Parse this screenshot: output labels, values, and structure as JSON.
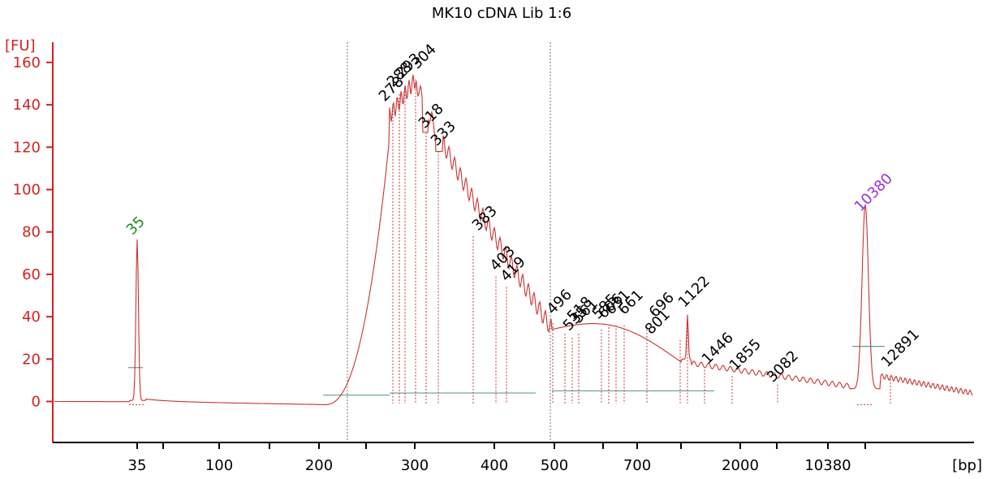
{
  "chart_data": {
    "type": "line",
    "title": "MK10 cDNA Lib 1:6",
    "ylabel": "[FU]",
    "xlabel": "[bp]",
    "ylim": [
      -18,
      170
    ],
    "yticks": [
      0,
      20,
      40,
      60,
      80,
      100,
      120,
      140,
      160
    ],
    "xtick_labels": [
      "35",
      "",
      "100",
      "",
      "200",
      "",
      "300",
      "400",
      "500",
      "",
      "700",
      "",
      "2000",
      "",
      "10380",
      ""
    ],
    "colors": {
      "axis_y": "#d42020",
      "trace": "#c83232",
      "marker_label": "#1a8a1a",
      "upper_marker_label": "#9b30d9",
      "peak_label": "#000000",
      "baseline": "#5f9ea0"
    },
    "marker_peaks": [
      {
        "label": "35",
        "height": 76,
        "role": "lower_marker"
      },
      {
        "label": "10380",
        "height": 87,
        "role": "upper_marker"
      }
    ],
    "sample_peaks": [
      {
        "label": "278",
        "height": 139
      },
      {
        "label": "288",
        "height": 145
      },
      {
        "label": "293",
        "height": 148
      },
      {
        "label": "304",
        "height": 152
      },
      {
        "label": "318",
        "height": 127
      },
      {
        "label": "333",
        "height": 118
      },
      {
        "label": "383",
        "height": 78
      },
      {
        "label": "403",
        "height": 59
      },
      {
        "label": "419",
        "height": 54
      },
      {
        "label": "496",
        "height": 37
      },
      {
        "label": "518",
        "height": 32
      },
      {
        "label": "535",
        "height": 30
      },
      {
        "label": "561",
        "height": 32
      },
      {
        "label": "585",
        "height": 34
      },
      {
        "label": "606",
        "height": 35
      },
      {
        "label": "631",
        "height": 36
      },
      {
        "label": "661",
        "height": 36
      },
      {
        "label": "696",
        "height": 34
      },
      {
        "label": "801",
        "height": 29
      },
      {
        "label": "1122",
        "height": 41
      },
      {
        "label": "1446",
        "height": 15
      },
      {
        "label": "1855",
        "height": 12
      },
      {
        "label": "3082",
        "height": 8
      },
      {
        "label": "12891",
        "height": 12
      }
    ]
  }
}
